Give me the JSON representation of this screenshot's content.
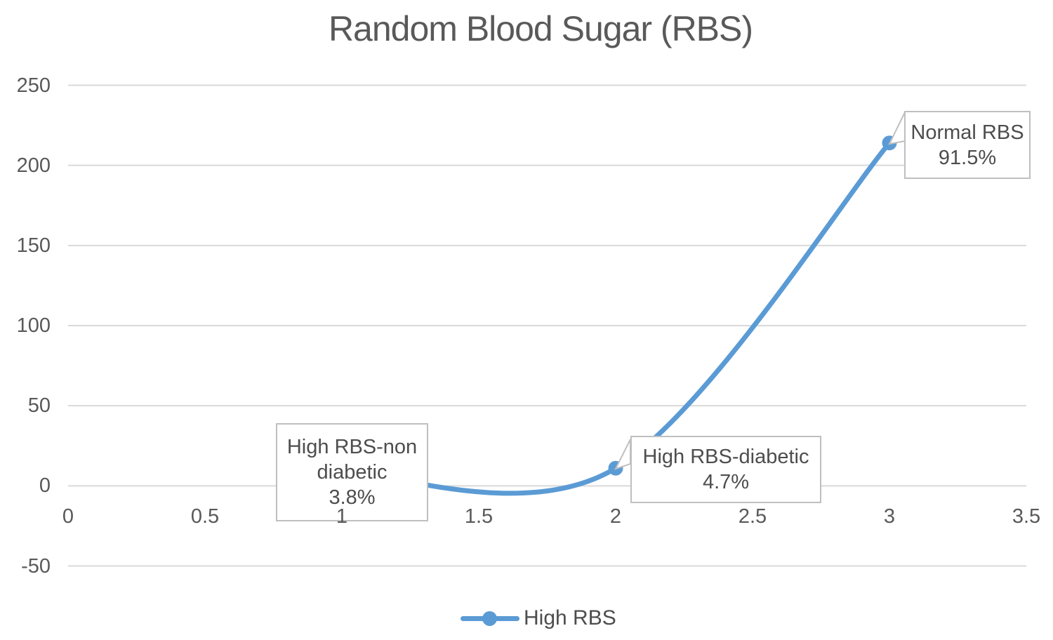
{
  "title": "Random Blood Sugar (RBS)",
  "colors": {
    "accent": "#5B9BD5",
    "gridline": "#D9D9D9",
    "axis_text": "#595959",
    "label_border": "#BFBFBF",
    "label_text": "#4D4D4D"
  },
  "legend": {
    "position": "bottom",
    "label": "High RBS"
  },
  "chart_data": {
    "type": "line",
    "title": "Random Blood Sugar (RBS)",
    "smooth": true,
    "marker": "circle",
    "grid": "horizontal",
    "legend_position": "bottom",
    "xlabel": "",
    "ylabel": "",
    "xlim": [
      0,
      3.5
    ],
    "ylim": [
      -50,
      250
    ],
    "x_ticks": [
      0,
      0.5,
      1,
      1.5,
      2,
      2.5,
      3,
      3.5
    ],
    "y_ticks": [
      250,
      200,
      150,
      100,
      50,
      0,
      -50
    ],
    "series": [
      {
        "name": "High RBS",
        "x": [
          1,
          2,
          3
        ],
        "values": [
          9,
          11,
          214
        ]
      }
    ],
    "annotations": [
      {
        "label": "High RBS-non diabetic",
        "value": "3.8%",
        "point_x": 1,
        "point_y": 9
      },
      {
        "label": "High RBS-diabetic",
        "value": "4.7%",
        "point_x": 2,
        "point_y": 11
      },
      {
        "label": "Normal RBS",
        "value": "91.5%",
        "point_x": 3,
        "point_y": 214
      }
    ]
  }
}
